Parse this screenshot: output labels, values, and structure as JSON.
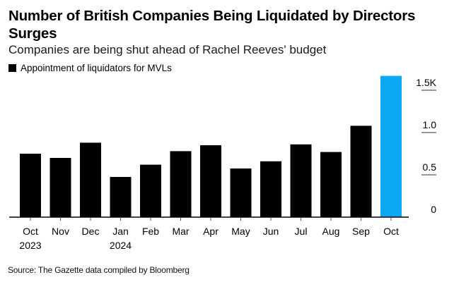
{
  "chart_data": {
    "type": "bar",
    "title": "Number of British Companies Being Liquidated by Directors Surges",
    "subtitle": "Companies are being shut ahead of Rachel Reeves' budget",
    "legend": [
      {
        "name": "Appointment of liquidators for MVLs",
        "color": "#000000"
      }
    ],
    "legend_placement": "top-left",
    "categories": [
      "Oct 2023",
      "Nov",
      "Dec",
      "Jan 2024",
      "Feb",
      "Mar",
      "Apr",
      "May",
      "Jun",
      "Jul",
      "Aug",
      "Sep",
      "Oct"
    ],
    "x_tick_labels": [
      {
        "line1": "Oct",
        "line2": "2023"
      },
      {
        "line1": "Nov",
        "line2": ""
      },
      {
        "line1": "Dec",
        "line2": ""
      },
      {
        "line1": "Jan",
        "line2": "2024"
      },
      {
        "line1": "Feb",
        "line2": ""
      },
      {
        "line1": "Mar",
        "line2": ""
      },
      {
        "line1": "Apr",
        "line2": ""
      },
      {
        "line1": "May",
        "line2": ""
      },
      {
        "line1": "Jun",
        "line2": ""
      },
      {
        "line1": "Jul",
        "line2": ""
      },
      {
        "line1": "Aug",
        "line2": ""
      },
      {
        "line1": "Sep",
        "line2": ""
      },
      {
        "line1": "Oct",
        "line2": ""
      }
    ],
    "series": [
      {
        "name": "Appointment of liquidators for MVLs",
        "values": [
          0.75,
          0.7,
          0.88,
          0.475,
          0.62,
          0.78,
          0.85,
          0.575,
          0.66,
          0.86,
          0.77,
          1.08,
          1.67
        ],
        "unit": "thousands"
      }
    ],
    "bar_colors": [
      "#000000",
      "#000000",
      "#000000",
      "#000000",
      "#000000",
      "#000000",
      "#000000",
      "#000000",
      "#000000",
      "#000000",
      "#000000",
      "#000000",
      "#0aa8f5"
    ],
    "highlight_color": "#0aa8f5",
    "default_color": "#000000",
    "y_ticks": [
      {
        "value": 0,
        "label": "0"
      },
      {
        "value": 0.5,
        "label": "0.5"
      },
      {
        "value": 1.0,
        "label": "1.0"
      },
      {
        "value": 1.5,
        "label": "1.5K"
      }
    ],
    "ylim": [
      0,
      1.67
    ],
    "y_axis_position": "right",
    "xlabel": "",
    "ylabel": "",
    "grid": false
  },
  "source": "Source: The Gazette data compiled by Bloomberg"
}
